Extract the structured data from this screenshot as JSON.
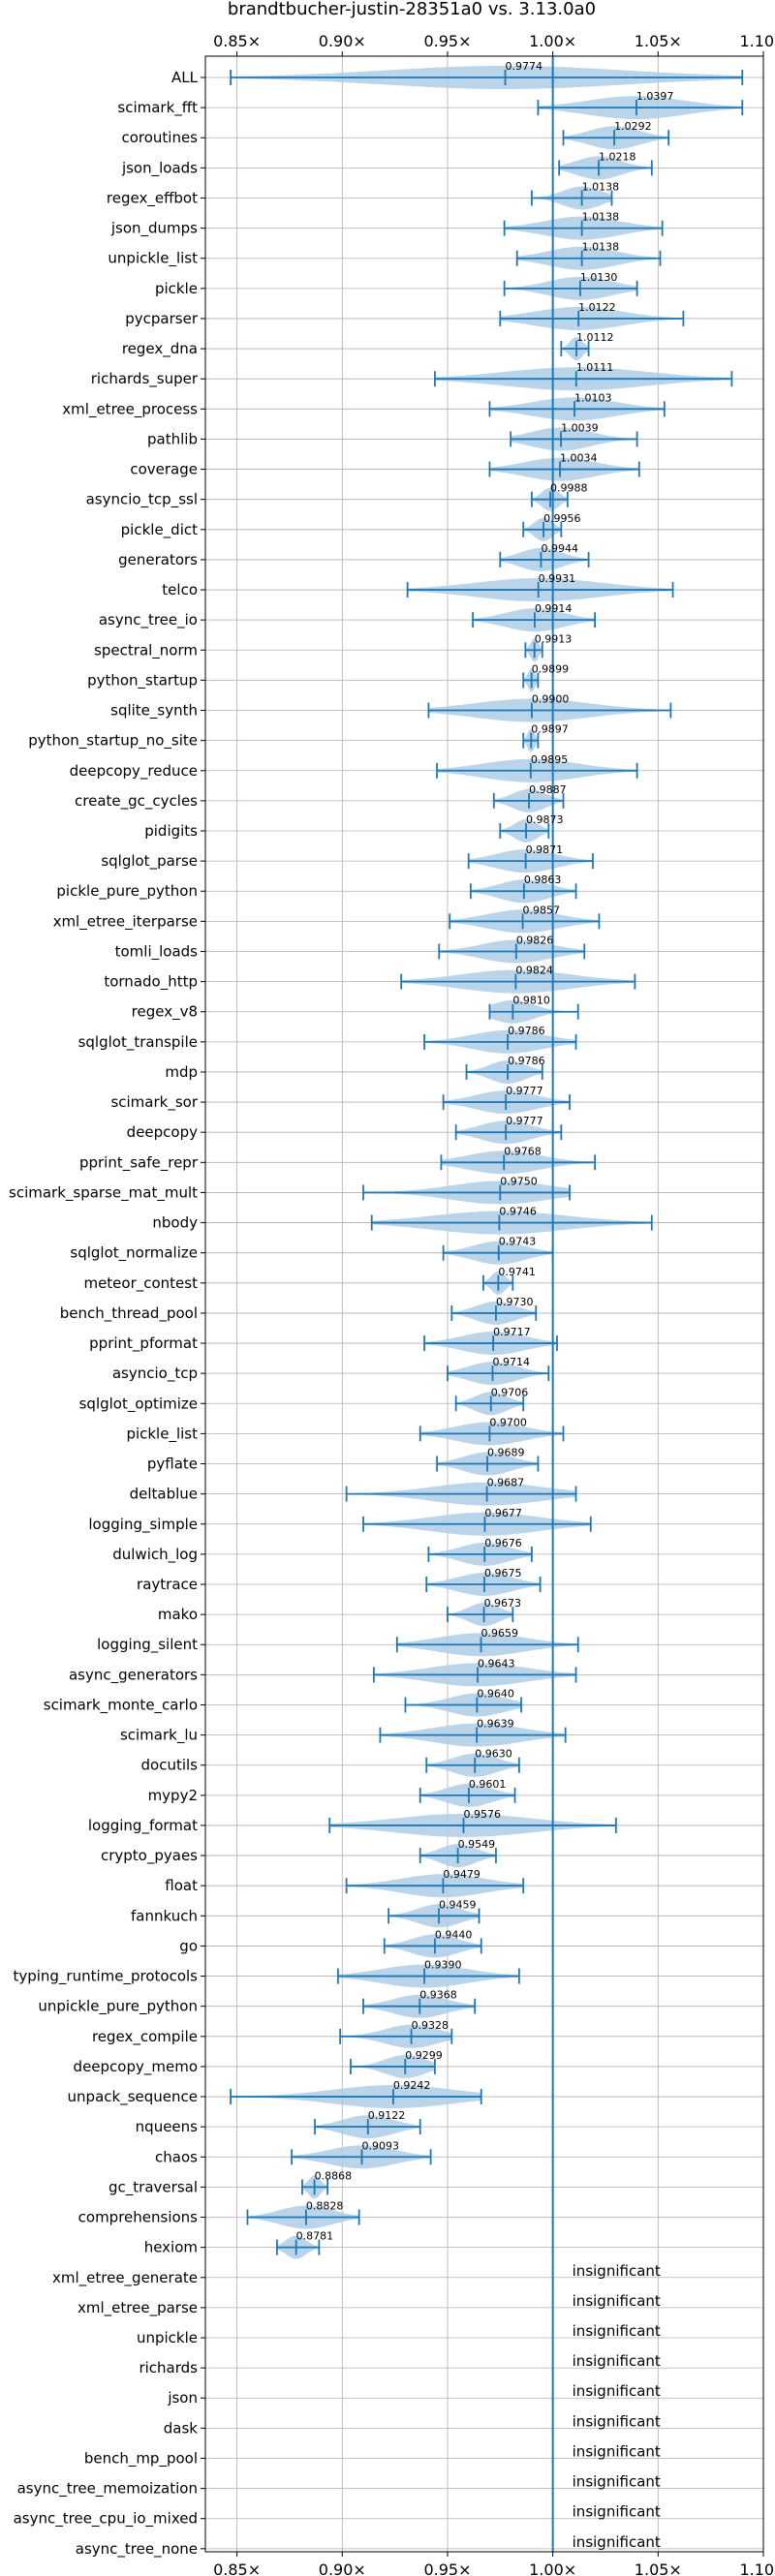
{
  "chart_data": {
    "type": "violin",
    "title": "brandtbucher-justin-28351a0 vs. 3.13.0a0",
    "xlim": [
      0.835,
      1.1
    ],
    "xticks": [
      0.85,
      0.9,
      0.95,
      1.0,
      1.05,
      1.1
    ],
    "xtick_labels": [
      "0.85×",
      "0.90×",
      "0.95×",
      "1.00×",
      "1.05×",
      "1.10×"
    ],
    "reference_line": 1.0,
    "grid": true,
    "colors": {
      "violin": "#aecde6",
      "line": "#1f77b4"
    },
    "insignificant_label": "insignificant",
    "benchmarks": [
      {
        "name": "ALL",
        "mean": 0.9774,
        "label": "0.9774",
        "min": 0.847,
        "max": 1.09
      },
      {
        "name": "scimark_fft",
        "mean": 1.0397,
        "label": "1.0397",
        "min": 0.993,
        "max": 1.09
      },
      {
        "name": "coroutines",
        "mean": 1.0292,
        "label": "1.0292",
        "min": 1.005,
        "max": 1.055
      },
      {
        "name": "json_loads",
        "mean": 1.0218,
        "label": "1.0218",
        "min": 1.003,
        "max": 1.047
      },
      {
        "name": "regex_effbot",
        "mean": 1.0138,
        "label": "1.0138",
        "min": 0.99,
        "max": 1.028
      },
      {
        "name": "json_dumps",
        "mean": 1.0138,
        "label": "1.0138",
        "min": 0.977,
        "max": 1.052
      },
      {
        "name": "unpickle_list",
        "mean": 1.0138,
        "label": "1.0138",
        "min": 0.983,
        "max": 1.051
      },
      {
        "name": "pickle",
        "mean": 1.013,
        "label": "1.0130",
        "min": 0.977,
        "max": 1.04
      },
      {
        "name": "pycparser",
        "mean": 1.0122,
        "label": "1.0122",
        "min": 0.975,
        "max": 1.062
      },
      {
        "name": "regex_dna",
        "mean": 1.0112,
        "label": "1.0112",
        "min": 1.004,
        "max": 1.017
      },
      {
        "name": "richards_super",
        "mean": 1.0111,
        "label": "1.0111",
        "min": 0.944,
        "max": 1.085
      },
      {
        "name": "xml_etree_process",
        "mean": 1.0103,
        "label": "1.0103",
        "min": 0.97,
        "max": 1.053
      },
      {
        "name": "pathlib",
        "mean": 1.0039,
        "label": "1.0039",
        "min": 0.98,
        "max": 1.04
      },
      {
        "name": "coverage",
        "mean": 1.0034,
        "label": "1.0034",
        "min": 0.97,
        "max": 1.041
      },
      {
        "name": "asyncio_tcp_ssl",
        "mean": 0.9988,
        "label": "0.9988",
        "min": 0.99,
        "max": 1.007
      },
      {
        "name": "pickle_dict",
        "mean": 0.9956,
        "label": "0.9956",
        "min": 0.986,
        "max": 1.004
      },
      {
        "name": "generators",
        "mean": 0.9944,
        "label": "0.9944",
        "min": 0.975,
        "max": 1.017
      },
      {
        "name": "telco",
        "mean": 0.9931,
        "label": "0.9931",
        "min": 0.931,
        "max": 1.057
      },
      {
        "name": "async_tree_io",
        "mean": 0.9914,
        "label": "0.9914",
        "min": 0.962,
        "max": 1.02
      },
      {
        "name": "spectral_norm",
        "mean": 0.9913,
        "label": "0.9913",
        "min": 0.987,
        "max": 0.995
      },
      {
        "name": "python_startup",
        "mean": 0.9899,
        "label": "0.9899",
        "min": 0.986,
        "max": 0.993
      },
      {
        "name": "sqlite_synth",
        "mean": 0.99,
        "label": "0.9900",
        "min": 0.941,
        "max": 1.056
      },
      {
        "name": "python_startup_no_site",
        "mean": 0.9897,
        "label": "0.9897",
        "min": 0.986,
        "max": 0.993
      },
      {
        "name": "deepcopy_reduce",
        "mean": 0.9895,
        "label": "0.9895",
        "min": 0.945,
        "max": 1.04
      },
      {
        "name": "create_gc_cycles",
        "mean": 0.9887,
        "label": "0.9887",
        "min": 0.972,
        "max": 1.005
      },
      {
        "name": "pidigits",
        "mean": 0.9873,
        "label": "0.9873",
        "min": 0.975,
        "max": 0.998
      },
      {
        "name": "sqlglot_parse",
        "mean": 0.9871,
        "label": "0.9871",
        "min": 0.96,
        "max": 1.019
      },
      {
        "name": "pickle_pure_python",
        "mean": 0.9863,
        "label": "0.9863",
        "min": 0.961,
        "max": 1.011
      },
      {
        "name": "xml_etree_iterparse",
        "mean": 0.9857,
        "label": "0.9857",
        "min": 0.951,
        "max": 1.022
      },
      {
        "name": "tomli_loads",
        "mean": 0.9826,
        "label": "0.9826",
        "min": 0.946,
        "max": 1.015
      },
      {
        "name": "tornado_http",
        "mean": 0.9824,
        "label": "0.9824",
        "min": 0.928,
        "max": 1.039
      },
      {
        "name": "regex_v8",
        "mean": 0.981,
        "label": "0.9810",
        "min": 0.97,
        "max": 1.012
      },
      {
        "name": "sqlglot_transpile",
        "mean": 0.9786,
        "label": "0.9786",
        "min": 0.939,
        "max": 1.011
      },
      {
        "name": "mdp",
        "mean": 0.9786,
        "label": "0.9786",
        "min": 0.959,
        "max": 0.995
      },
      {
        "name": "scimark_sor",
        "mean": 0.9777,
        "label": "0.9777",
        "min": 0.948,
        "max": 1.008
      },
      {
        "name": "deepcopy",
        "mean": 0.9777,
        "label": "0.9777",
        "min": 0.954,
        "max": 1.004
      },
      {
        "name": "pprint_safe_repr",
        "mean": 0.9768,
        "label": "0.9768",
        "min": 0.947,
        "max": 1.02
      },
      {
        "name": "scimark_sparse_mat_mult",
        "mean": 0.975,
        "label": "0.9750",
        "min": 0.91,
        "max": 1.008
      },
      {
        "name": "nbody",
        "mean": 0.9746,
        "label": "0.9746",
        "min": 0.914,
        "max": 1.047
      },
      {
        "name": "sqlglot_normalize",
        "mean": 0.9743,
        "label": "0.9743",
        "min": 0.948,
        "max": 1.0
      },
      {
        "name": "meteor_contest",
        "mean": 0.9741,
        "label": "0.9741",
        "min": 0.967,
        "max": 0.981
      },
      {
        "name": "bench_thread_pool",
        "mean": 0.973,
        "label": "0.9730",
        "min": 0.952,
        "max": 0.992
      },
      {
        "name": "pprint_pformat",
        "mean": 0.9717,
        "label": "0.9717",
        "min": 0.939,
        "max": 1.002
      },
      {
        "name": "asyncio_tcp",
        "mean": 0.9714,
        "label": "0.9714",
        "min": 0.95,
        "max": 0.998
      },
      {
        "name": "sqlglot_optimize",
        "mean": 0.9706,
        "label": "0.9706",
        "min": 0.954,
        "max": 0.986
      },
      {
        "name": "pickle_list",
        "mean": 0.97,
        "label": "0.9700",
        "min": 0.937,
        "max": 1.005
      },
      {
        "name": "pyflate",
        "mean": 0.9689,
        "label": "0.9689",
        "min": 0.945,
        "max": 0.993
      },
      {
        "name": "deltablue",
        "mean": 0.9687,
        "label": "0.9687",
        "min": 0.902,
        "max": 1.011
      },
      {
        "name": "logging_simple",
        "mean": 0.9677,
        "label": "0.9677",
        "min": 0.91,
        "max": 1.018
      },
      {
        "name": "dulwich_log",
        "mean": 0.9676,
        "label": "0.9676",
        "min": 0.941,
        "max": 0.99
      },
      {
        "name": "raytrace",
        "mean": 0.9675,
        "label": "0.9675",
        "min": 0.94,
        "max": 0.994
      },
      {
        "name": "mako",
        "mean": 0.9673,
        "label": "0.9673",
        "min": 0.95,
        "max": 0.981
      },
      {
        "name": "logging_silent",
        "mean": 0.9659,
        "label": "0.9659",
        "min": 0.926,
        "max": 1.012
      },
      {
        "name": "async_generators",
        "mean": 0.9643,
        "label": "0.9643",
        "min": 0.915,
        "max": 1.011
      },
      {
        "name": "scimark_monte_carlo",
        "mean": 0.964,
        "label": "0.9640",
        "min": 0.93,
        "max": 0.985
      },
      {
        "name": "scimark_lu",
        "mean": 0.9639,
        "label": "0.9639",
        "min": 0.918,
        "max": 1.006
      },
      {
        "name": "docutils",
        "mean": 0.963,
        "label": "0.9630",
        "min": 0.94,
        "max": 0.984
      },
      {
        "name": "mypy2",
        "mean": 0.9601,
        "label": "0.9601",
        "min": 0.937,
        "max": 0.982
      },
      {
        "name": "logging_format",
        "mean": 0.9576,
        "label": "0.9576",
        "min": 0.894,
        "max": 1.03
      },
      {
        "name": "crypto_pyaes",
        "mean": 0.9549,
        "label": "0.9549",
        "min": 0.937,
        "max": 0.973
      },
      {
        "name": "float",
        "mean": 0.9479,
        "label": "0.9479",
        "min": 0.902,
        "max": 0.986
      },
      {
        "name": "fannkuch",
        "mean": 0.9459,
        "label": "0.9459",
        "min": 0.922,
        "max": 0.965
      },
      {
        "name": "go",
        "mean": 0.944,
        "label": "0.9440",
        "min": 0.92,
        "max": 0.966
      },
      {
        "name": "typing_runtime_protocols",
        "mean": 0.939,
        "label": "0.9390",
        "min": 0.898,
        "max": 0.984
      },
      {
        "name": "unpickle_pure_python",
        "mean": 0.9368,
        "label": "0.9368",
        "min": 0.91,
        "max": 0.963
      },
      {
        "name": "regex_compile",
        "mean": 0.9328,
        "label": "0.9328",
        "min": 0.899,
        "max": 0.952
      },
      {
        "name": "deepcopy_memo",
        "mean": 0.9299,
        "label": "0.9299",
        "min": 0.904,
        "max": 0.944
      },
      {
        "name": "unpack_sequence",
        "mean": 0.9242,
        "label": "0.9242",
        "min": 0.847,
        "max": 0.966
      },
      {
        "name": "nqueens",
        "mean": 0.9122,
        "label": "0.9122",
        "min": 0.887,
        "max": 0.937
      },
      {
        "name": "chaos",
        "mean": 0.9093,
        "label": "0.9093",
        "min": 0.876,
        "max": 0.942
      },
      {
        "name": "gc_traversal",
        "mean": 0.8868,
        "label": "0.8868",
        "min": 0.881,
        "max": 0.893
      },
      {
        "name": "comprehensions",
        "mean": 0.8828,
        "label": "0.8828",
        "min": 0.855,
        "max": 0.908
      },
      {
        "name": "hexiom",
        "mean": 0.8781,
        "label": "0.8781",
        "min": 0.869,
        "max": 0.889
      },
      {
        "name": "xml_etree_generate",
        "insignificant": true
      },
      {
        "name": "xml_etree_parse",
        "insignificant": true
      },
      {
        "name": "unpickle",
        "insignificant": true
      },
      {
        "name": "richards",
        "insignificant": true
      },
      {
        "name": "json",
        "insignificant": true
      },
      {
        "name": "dask",
        "insignificant": true
      },
      {
        "name": "bench_mp_pool",
        "insignificant": true
      },
      {
        "name": "async_tree_memoization",
        "insignificant": true
      },
      {
        "name": "async_tree_cpu_io_mixed",
        "insignificant": true
      },
      {
        "name": "async_tree_none",
        "insignificant": true
      }
    ]
  }
}
